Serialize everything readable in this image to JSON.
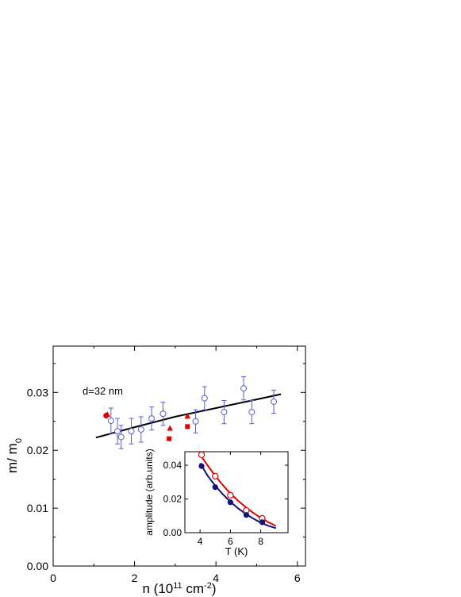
{
  "chart_data": [
    {
      "type": "scatter",
      "xlabel": "n (10",
      "xlabel_sup1": "11",
      "xlabel_mid": " cm",
      "xlabel_sup2": "-2",
      "xlabel_end": ")",
      "ylabel": "m/ m",
      "ylabel_sub": "0",
      "xlim": [
        0,
        6.2
      ],
      "ylim": [
        0,
        0.038
      ],
      "xticks": [
        0,
        2,
        4,
        6
      ],
      "yticks": [
        0.0,
        0.01,
        0.02,
        0.03
      ],
      "xticklabels": [
        "0",
        "2",
        "4",
        "6"
      ],
      "yticklabels": [
        "0.00",
        "0.01",
        "0.02",
        "0.03"
      ],
      "annotation": "d=32 nm",
      "colors": {
        "theory": "#000000",
        "open_circles": "#5a5ad6",
        "red": "#e00000"
      },
      "series": [
        {
          "marker": "open-circle-errorbar",
          "x": [
            1.42,
            1.58,
            1.67,
            1.92,
            2.16,
            2.42,
            2.7,
            3.5,
            3.72,
            4.2,
            4.68,
            4.88,
            5.42
          ],
          "y": [
            0.0251,
            0.0233,
            0.0223,
            0.0233,
            0.0236,
            0.0255,
            0.0263,
            0.025,
            0.029,
            0.0266,
            0.0307,
            0.0266,
            0.0284
          ],
          "err": [
            0.0022,
            0.0022,
            0.002,
            0.0022,
            0.0022,
            0.002,
            0.002,
            0.002,
            0.002,
            0.002,
            0.002,
            0.002,
            0.002
          ]
        },
        {
          "marker": "filled-circle",
          "x": [
            1.3
          ],
          "y": [
            0.026
          ]
        },
        {
          "marker": "filled-triangle",
          "x": [
            1.33,
            2.87,
            3.3
          ],
          "y": [
            0.0262,
            0.0238,
            0.0259
          ]
        },
        {
          "marker": "filled-square",
          "x": [
            2.85,
            3.3
          ],
          "y": [
            0.022,
            0.0241
          ]
        },
        {
          "marker": "line",
          "x": [
            1.05,
            2.0,
            3.0,
            4.0,
            5.0,
            5.6
          ],
          "y": [
            0.0222,
            0.024,
            0.0258,
            0.0273,
            0.0288,
            0.0297
          ]
        }
      ]
    },
    {
      "type": "scatter",
      "inset": true,
      "xlabel": "T (K)",
      "ylabel": "amplitude (arb.units)",
      "xlim": [
        3.0,
        9.8
      ],
      "ylim": [
        0,
        0.048
      ],
      "xticks": [
        4,
        6,
        8
      ],
      "yticks": [
        0.0,
        0.02,
        0.04
      ],
      "xticklabels": [
        "4",
        "6",
        "8"
      ],
      "yticklabels": [
        "0.00",
        "0.02",
        "0.04"
      ],
      "colors": {
        "open": "#e00000",
        "filled": "#13137a"
      },
      "series": [
        {
          "marker": "open-circle",
          "x": [
            4.1,
            5.0,
            6.0,
            7.05,
            8.1
          ],
          "y": [
            0.0462,
            0.0335,
            0.0222,
            0.0132,
            0.0085
          ],
          "curve_x": [
            4.0,
            4.5,
            5.0,
            5.5,
            6.0,
            6.5,
            7.0,
            7.5,
            8.0,
            8.5,
            9.0
          ],
          "curve_y": [
            0.0465,
            0.0398,
            0.0338,
            0.0282,
            0.0232,
            0.019,
            0.0152,
            0.0118,
            0.0088,
            0.0062,
            0.004
          ]
        },
        {
          "marker": "filled-circle",
          "x": [
            4.1,
            5.0,
            6.0,
            7.05,
            8.1
          ],
          "y": [
            0.0395,
            0.027,
            0.018,
            0.0105,
            0.0062
          ],
          "curve_x": [
            4.0,
            4.5,
            5.0,
            5.5,
            6.0,
            6.5,
            7.0,
            7.5,
            8.0,
            8.5,
            9.0
          ],
          "curve_y": [
            0.0412,
            0.0338,
            0.0278,
            0.0228,
            0.0183,
            0.0145,
            0.0112,
            0.0084,
            0.006,
            0.0041,
            0.0027
          ]
        }
      ]
    }
  ]
}
